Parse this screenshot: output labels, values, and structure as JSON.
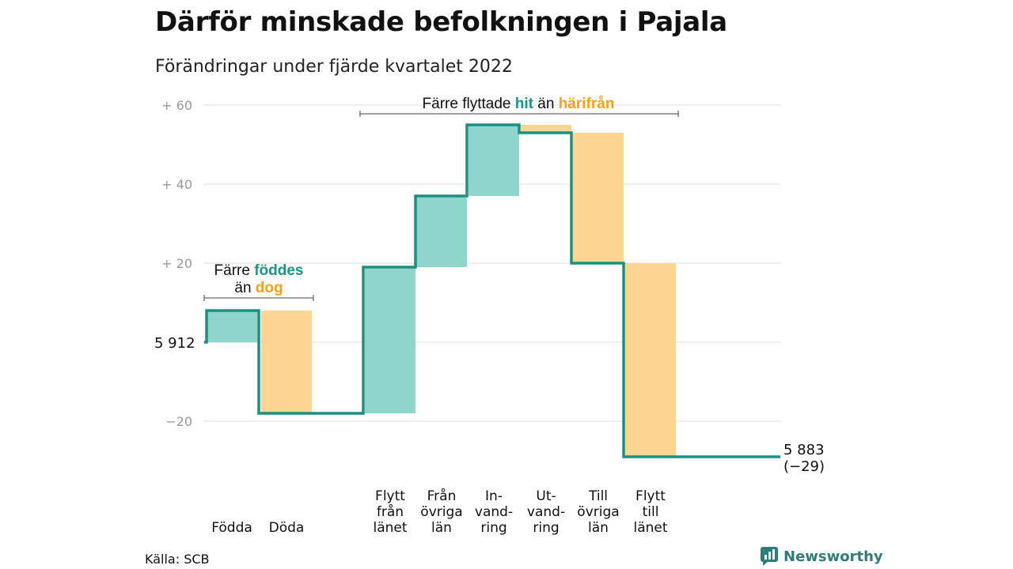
{
  "chart_data": {
    "type": "waterfall",
    "title": "Därför minskade befolkningen i Pajala",
    "subtitle": "Förändringar under fjärde kvartalet 2022",
    "start_value": 5912,
    "start_label": "5 912",
    "end_label": [
      "5 883",
      "(−29)"
    ],
    "yticks": [
      {
        "value": 60,
        "label": "+ 60"
      },
      {
        "value": 40,
        "label": "+ 40"
      },
      {
        "value": 20,
        "label": "+ 20"
      },
      {
        "value": -20,
        "label": "−20"
      }
    ],
    "ylim": [
      -30,
      62
    ],
    "steps": [
      {
        "category": "Födda",
        "label_lines": [
          "Födda"
        ],
        "delta": 8,
        "kind": "in"
      },
      {
        "category": "Döda",
        "label_lines": [
          "Döda"
        ],
        "delta": -26,
        "kind": "out"
      },
      {
        "category": "Flytt från länet",
        "label_lines": [
          "Flytt",
          "från",
          "länet"
        ],
        "delta": 37,
        "kind": "in"
      },
      {
        "category": "Från övriga län",
        "label_lines": [
          "Från",
          "övriga",
          "län"
        ],
        "delta": 18,
        "kind": "in"
      },
      {
        "category": "Invandring",
        "label_lines": [
          "In-",
          "vand-",
          "ring"
        ],
        "delta": 18,
        "kind": "in"
      },
      {
        "category": "Utvandring",
        "label_lines": [
          "Ut-",
          "vand-",
          "ring"
        ],
        "delta": -2,
        "kind": "out"
      },
      {
        "category": "Till övriga län",
        "label_lines": [
          "Till",
          "övriga",
          "län"
        ],
        "delta": -33,
        "kind": "out"
      },
      {
        "category": "Flytt till länet",
        "label_lines": [
          "Flytt",
          "till",
          "länet"
        ],
        "delta": -49,
        "kind": "out"
      }
    ],
    "annotations": [
      {
        "id": "births",
        "line1": [
          {
            "text": "Färre ",
            "kind": "plain"
          },
          {
            "text": "föddes",
            "kind": "in"
          }
        ],
        "line2": [
          {
            "text": "än ",
            "kind": "plain"
          },
          {
            "text": "dog",
            "kind": "out"
          }
        ]
      },
      {
        "id": "moves",
        "line1": [
          {
            "text": "Färre flyttade ",
            "kind": "plain"
          },
          {
            "text": "hit",
            "kind": "in"
          },
          {
            "text": " än ",
            "kind": "plain"
          },
          {
            "text": "härifrån",
            "kind": "out"
          }
        ]
      }
    ],
    "colors": {
      "in_fill": "#8ed6cb",
      "out_fill": "#fdd792",
      "line": "#1d8f80",
      "in_text": "#1d9486",
      "out_text": "#f4a21c",
      "grid": "#dcdcdc",
      "tick": "#999999"
    }
  },
  "footer": {
    "source": "Källa: SCB",
    "brand": "Newsworthy"
  }
}
